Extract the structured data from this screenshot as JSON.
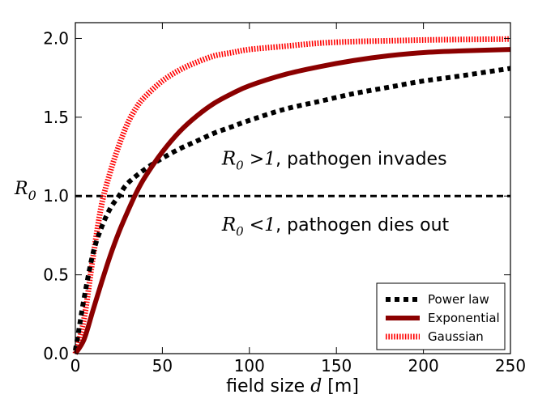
{
  "chart_data": {
    "type": "line",
    "xlabel": {
      "prefix": "field size ",
      "var": "d",
      "suffix": " [m]"
    },
    "ylabel": {
      "var": "R",
      "sub": "0"
    },
    "xlim": [
      0,
      250
    ],
    "ylim": [
      0,
      2.1
    ],
    "xticks": [
      0,
      50,
      100,
      150,
      200,
      250
    ],
    "yticks": [
      0.0,
      0.5,
      1.0,
      1.5,
      2.0
    ],
    "ytick_labels": [
      "0.0",
      "0.5",
      "1.0",
      "1.5",
      "2.0"
    ],
    "annotations": [
      {
        "var": "R",
        "sub": "0",
        "rel": " >1",
        "text": ", pathogen invades",
        "x": 80,
        "y": 1.2
      },
      {
        "var": "R",
        "sub": "0",
        "rel": " <1",
        "text": ", pathogen dies out",
        "x": 80,
        "y": 0.78
      }
    ],
    "threshold": {
      "y": 1.0,
      "style": "dashed",
      "color": "#000000"
    },
    "legend_position": "lower-right",
    "series": [
      {
        "name": "Power law",
        "color": "#000000",
        "style": "dotted",
        "x": [
          0,
          2,
          5,
          10,
          15,
          20,
          25,
          30,
          40,
          50,
          60,
          70,
          80,
          90,
          100,
          120,
          140,
          160,
          180,
          200,
          220,
          250
        ],
        "y": [
          0.02,
          0.15,
          0.35,
          0.63,
          0.8,
          0.92,
          1.0,
          1.08,
          1.17,
          1.24,
          1.3,
          1.35,
          1.4,
          1.44,
          1.48,
          1.55,
          1.6,
          1.65,
          1.69,
          1.73,
          1.76,
          1.81
        ]
      },
      {
        "name": "Exponential",
        "color": "#8b0000",
        "style": "solid",
        "x": [
          0,
          5,
          10,
          15,
          20,
          25,
          30,
          35,
          40,
          50,
          60,
          70,
          80,
          90,
          100,
          120,
          140,
          160,
          180,
          200,
          220,
          250
        ],
        "y": [
          0.0,
          0.09,
          0.27,
          0.45,
          0.62,
          0.77,
          0.9,
          1.02,
          1.12,
          1.28,
          1.41,
          1.51,
          1.59,
          1.65,
          1.7,
          1.77,
          1.82,
          1.86,
          1.89,
          1.91,
          1.92,
          1.93
        ]
      },
      {
        "name": "Gaussian",
        "color": "#ff0000",
        "style": "hatched",
        "x": [
          0,
          5,
          10,
          15,
          20,
          25,
          30,
          35,
          40,
          50,
          60,
          70,
          80,
          90,
          100,
          120,
          140,
          160,
          180,
          200,
          220,
          250
        ],
        "y": [
          0.0,
          0.22,
          0.6,
          0.94,
          1.15,
          1.32,
          1.46,
          1.56,
          1.63,
          1.73,
          1.8,
          1.85,
          1.89,
          1.91,
          1.93,
          1.95,
          1.97,
          1.98,
          1.985,
          1.99,
          1.993,
          1.996
        ]
      }
    ]
  }
}
